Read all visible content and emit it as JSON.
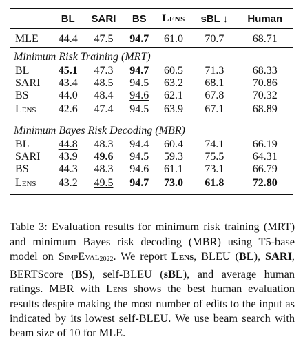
{
  "table": {
    "columns": [
      "",
      "BL",
      "SARI",
      "BS",
      "Lens",
      "sBL ↓",
      "Human"
    ],
    "mle_row": {
      "system": "MLE",
      "values": [
        "44.4",
        "47.5",
        "94.7",
        "61.0",
        "70.7",
        "68.71"
      ]
    },
    "sections": [
      {
        "title": "Minimum Risk Training (MRT)",
        "rows": [
          {
            "system": "BL",
            "values": [
              "45.1",
              "47.3",
              "94.7",
              "60.5",
              "71.3",
              "68.33"
            ]
          },
          {
            "system": "SARI",
            "values": [
              "43.4",
              "48.5",
              "94.5",
              "63.2",
              "68.1",
              "70.86"
            ]
          },
          {
            "system": "BS",
            "values": [
              "44.0",
              "48.4",
              "94.6",
              "62.1",
              "67.8",
              "70.32"
            ]
          },
          {
            "system": "Lens",
            "values": [
              "42.6",
              "47.4",
              "94.5",
              "63.9",
              "67.1",
              "68.89"
            ]
          }
        ]
      },
      {
        "title": "Minimum Bayes Risk Decoding (MBR)",
        "rows": [
          {
            "system": "BL",
            "values": [
              "44.8",
              "48.3",
              "94.4",
              "60.4",
              "74.1",
              "66.19"
            ]
          },
          {
            "system": "SARI",
            "values": [
              "43.9",
              "49.6",
              "94.5",
              "59.3",
              "75.5",
              "64.31"
            ]
          },
          {
            "system": "BS",
            "values": [
              "44.3",
              "48.3",
              "94.6",
              "61.1",
              "73.1",
              "66.79"
            ]
          },
          {
            "system": "Lens",
            "values": [
              "43.2",
              "49.5",
              "94.7",
              "73.0",
              "61.8",
              "72.80"
            ]
          }
        ]
      }
    ]
  },
  "caption": {
    "p1": "Table 3: Evaluation results for minimum risk training (MRT) and minimum Bayes risk decoding (MBR) using T5-base model on ",
    "simpeval": "SimpEval",
    "simpeval_sub": "2022",
    "p2": ". We report ",
    "lens": "Lens",
    "p3": ", BLEU (",
    "bl": "BL",
    "p4": "), ",
    "sari": "SARI",
    "p5": ", BERTScore (",
    "bs": "BS",
    "p6": "), self-BLEU (",
    "sbl": "sBL",
    "p7": "), and average human ratings. MBR with ",
    "lens2": "Lens",
    "p8": " shows the best human evaluation results despite making the most number of edits to the input as indicated by its lowest self-BLEU. We use beam search with beam size of 10 for MLE."
  }
}
